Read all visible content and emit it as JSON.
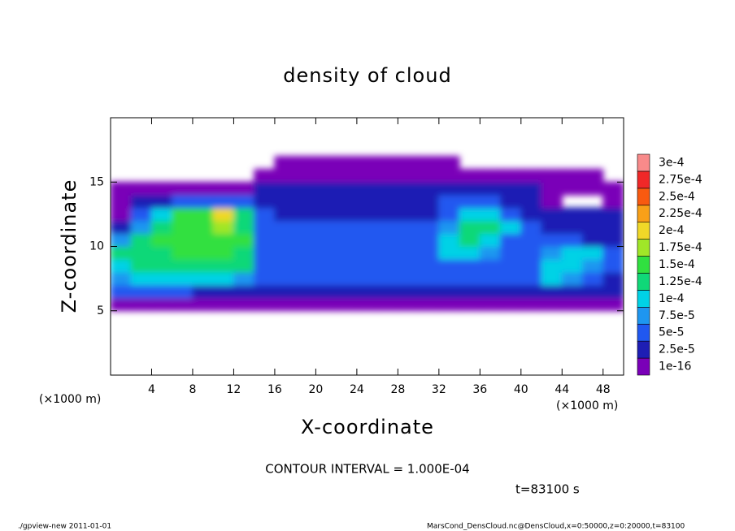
{
  "chart_data": {
    "type": "heatmap",
    "title": "density of cloud",
    "xlabel": "X-coordinate",
    "ylabel": "Z-coordinate",
    "x_unit": "(×1000 m)",
    "y_unit": "(×1000 m)",
    "contour_note": "CONTOUR INTERVAL = 1.000E-04",
    "time_note": "t=83100 s",
    "footer_left": "./gpview-new  2011-01-01",
    "footer_right": "MarsCond_DensCloud.nc@DensCloud,x=0:50000,z=0:20000,t=83100",
    "xlim": [
      0,
      50
    ],
    "ylim": [
      0,
      20
    ],
    "xticks": [
      4,
      8,
      12,
      16,
      20,
      24,
      28,
      32,
      36,
      40,
      44,
      48
    ],
    "yticks": [
      5,
      10,
      15
    ],
    "x": [
      1,
      3,
      5,
      7,
      9,
      11,
      13,
      15,
      17,
      19,
      21,
      23,
      25,
      27,
      29,
      31,
      33,
      35,
      37,
      39,
      41,
      43,
      45,
      47,
      49
    ],
    "z": [
      5.5,
      6.5,
      7.5,
      8.5,
      9.5,
      10.5,
      11.5,
      12.5,
      13.5,
      14.5,
      15.5,
      16.5
    ],
    "levels": [
      {
        "value": 1e-16,
        "label": "1e-16",
        "color": "#7a00b8"
      },
      {
        "value": 2.5e-05,
        "label": "2.5e-5",
        "color": "#1e1eb4"
      },
      {
        "value": 5e-05,
        "label": "5e-5",
        "color": "#2058f0"
      },
      {
        "value": 7.5e-05,
        "label": "7.5e-5",
        "color": "#1e96f0"
      },
      {
        "value": 0.0001,
        "label": "1e-4",
        "color": "#00d2e6"
      },
      {
        "value": 0.000125,
        "label": "1.25e-4",
        "color": "#10d878"
      },
      {
        "value": 0.00015,
        "label": "1.5e-4",
        "color": "#30e040"
      },
      {
        "value": 0.000175,
        "label": "1.75e-4",
        "color": "#a0e628"
      },
      {
        "value": 0.0002,
        "label": "2e-4",
        "color": "#f0d828"
      },
      {
        "value": 0.000225,
        "label": "2.25e-4",
        "color": "#f8a018"
      },
      {
        "value": 0.00025,
        "label": "2.5e-4",
        "color": "#f85a10"
      },
      {
        "value": 0.000275,
        "label": "2.75e-4",
        "color": "#f02828"
      },
      {
        "value": 0.0003,
        "label": "3e-4",
        "color": "#f88a8a"
      }
    ],
    "values": [
      [
        1e-06,
        1e-06,
        1e-06,
        1e-06,
        1e-06,
        1e-06,
        1e-06,
        1e-06,
        1e-06,
        1e-06,
        1e-06,
        1e-06,
        1e-06,
        1e-06,
        1e-06,
        1e-06,
        1e-06,
        1e-06,
        1e-06,
        1e-06,
        1e-06,
        1e-06,
        1e-06,
        1e-06,
        1e-06
      ],
      [
        6e-05,
        6e-05,
        5e-05,
        5e-05,
        4e-05,
        4e-05,
        4e-05,
        4e-05,
        4e-05,
        4e-05,
        4e-05,
        4e-05,
        4e-05,
        4e-05,
        4e-05,
        4e-05,
        4e-05,
        4e-05,
        4e-05,
        4e-05,
        4e-05,
        4e-05,
        4e-05,
        4e-05,
        4e-05
      ],
      [
        8e-05,
        0.00011,
        0.00011,
        0.00011,
        0.00011,
        0.00011,
        9e-05,
        5e-05,
        5e-05,
        5e-05,
        5e-05,
        5e-05,
        5e-05,
        5e-05,
        5e-05,
        5e-05,
        5e-05,
        5e-05,
        5e-05,
        5e-05,
        6e-05,
        0.0001,
        9e-05,
        6e-05,
        4e-05
      ],
      [
        0.00011,
        0.00013,
        0.00013,
        0.00013,
        0.00013,
        0.00013,
        0.00013,
        5e-05,
        5e-05,
        5e-05,
        5e-05,
        5e-05,
        5e-05,
        5e-05,
        5e-05,
        5e-05,
        6e-05,
        5e-05,
        5e-05,
        5e-05,
        7e-05,
        0.00011,
        0.00012,
        9e-05,
        5e-05
      ],
      [
        0.00013,
        0.00014,
        0.00014,
        0.00015,
        0.00015,
        0.00015,
        0.00014,
        6e-05,
        5e-05,
        5e-05,
        5e-05,
        5e-05,
        5e-05,
        5e-05,
        5e-05,
        6e-05,
        0.00011,
        0.00012,
        8e-05,
        5e-05,
        6e-05,
        9e-05,
        0.00011,
        0.0001,
        5e-05
      ],
      [
        9e-05,
        0.00014,
        0.00015,
        0.00016,
        0.00017,
        0.00016,
        0.00015,
        6e-05,
        5e-05,
        5e-05,
        5e-05,
        5e-05,
        5e-05,
        5e-05,
        5e-05,
        6e-05,
        0.00012,
        0.00013,
        0.00012,
        7e-05,
        5e-05,
        5e-05,
        6e-05,
        4e-05,
        3e-05
      ],
      [
        3e-05,
        8e-05,
        0.00013,
        0.00016,
        0.00017,
        0.00018,
        0.00014,
        5e-05,
        5e-05,
        5e-05,
        5e-05,
        5e-05,
        5e-05,
        5e-05,
        5e-05,
        5e-05,
        9e-05,
        0.00013,
        0.00013,
        0.00011,
        5e-05,
        4e-05,
        4e-05,
        4e-05,
        3e-05
      ],
      [
        2e-05,
        5e-05,
        0.0001,
        0.00015,
        0.00016,
        0.0002,
        0.00013,
        5e-05,
        4e-05,
        4e-05,
        4e-05,
        4e-05,
        4e-05,
        4e-05,
        4e-05,
        4e-05,
        6e-05,
        0.00011,
        0.00011,
        6e-05,
        3e-05,
        3e-05,
        3e-05,
        3e-05,
        3e-05
      ],
      [
        1e-05,
        4e-05,
        4e-05,
        5e-05,
        5e-05,
        5e-05,
        5e-05,
        4e-05,
        4e-05,
        4e-05,
        4e-05,
        4e-05,
        4e-05,
        4e-05,
        4e-05,
        4e-05,
        6e-05,
        6e-05,
        6e-05,
        4e-05,
        4e-05,
        2e-05,
        null,
        null,
        1e-05
      ],
      [
        2e-05,
        2e-05,
        2e-05,
        2e-05,
        2e-05,
        2e-05,
        2e-05,
        3e-05,
        3e-05,
        3e-05,
        3e-05,
        3e-05,
        3e-05,
        3e-05,
        3e-05,
        3e-05,
        3e-05,
        3e-05,
        3e-05,
        3e-05,
        3e-05,
        1e-05,
        1e-05,
        1e-05,
        1e-05
      ],
      [
        null,
        null,
        null,
        null,
        null,
        null,
        null,
        1e-06,
        1e-06,
        1e-06,
        1e-06,
        1e-06,
        1e-06,
        1e-06,
        1e-06,
        1e-06,
        1e-06,
        1e-06,
        1e-06,
        1e-06,
        1e-06,
        1e-06,
        1e-06,
        1e-06,
        null
      ],
      [
        null,
        null,
        null,
        null,
        null,
        null,
        null,
        null,
        1e-06,
        1e-06,
        1e-06,
        1e-06,
        1e-06,
        1e-06,
        1e-06,
        1e-06,
        1e-06,
        null,
        null,
        null,
        null,
        null,
        null,
        null,
        null
      ]
    ]
  }
}
